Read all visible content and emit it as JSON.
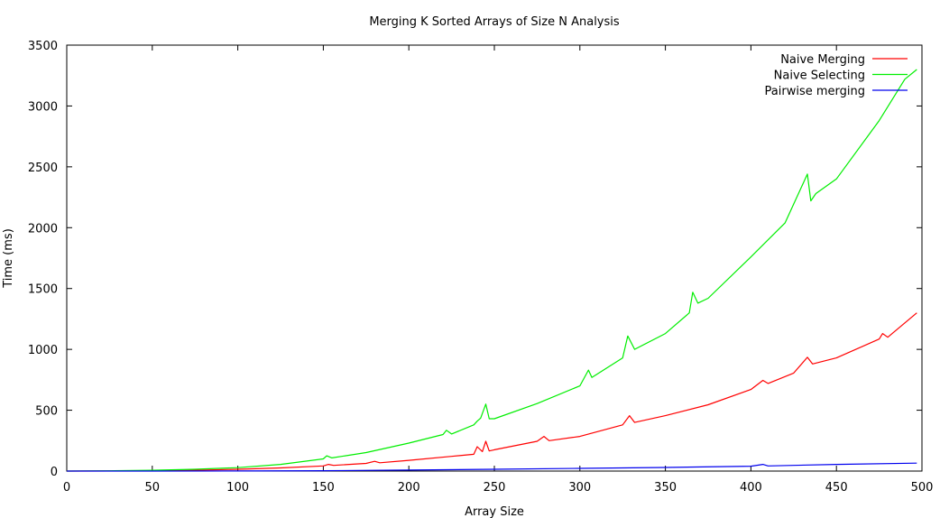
{
  "chart_data": {
    "type": "line",
    "title": "Merging K Sorted Arrays of Size N Analysis",
    "xlabel": "Array Size",
    "ylabel": "Time (ms)",
    "xlim": [
      0,
      500
    ],
    "ylim": [
      0,
      3500
    ],
    "xticks": [
      0,
      50,
      100,
      150,
      200,
      250,
      300,
      350,
      400,
      450,
      500
    ],
    "yticks": [
      0,
      500,
      1000,
      1500,
      2000,
      2500,
      3000,
      3500
    ],
    "grid": false,
    "legend_position": "top-right",
    "series": [
      {
        "name": "Naive Merging",
        "color": "#ff0000",
        "x": [
          0,
          25,
          50,
          75,
          100,
          125,
          150,
          153,
          156,
          175,
          180,
          183,
          200,
          225,
          238,
          240,
          243,
          245,
          247,
          250,
          275,
          279,
          282,
          300,
          325,
          329,
          332,
          350,
          375,
          400,
          407,
          410,
          425,
          433,
          436,
          450,
          475,
          477,
          480,
          497
        ],
        "values": [
          0,
          1,
          3,
          7,
          15,
          26,
          42,
          55,
          47,
          63,
          80,
          68,
          88,
          121,
          138,
          200,
          160,
          245,
          165,
          175,
          245,
          285,
          250,
          285,
          380,
          455,
          400,
          455,
          545,
          670,
          745,
          720,
          805,
          935,
          880,
          930,
          1085,
          1130,
          1100,
          1300
        ]
      },
      {
        "name": "Naive Selecting",
        "color": "#00ee00",
        "x": [
          0,
          25,
          50,
          75,
          100,
          125,
          150,
          152,
          155,
          175,
          200,
          220,
          222,
          225,
          238,
          240,
          242,
          245,
          247,
          250,
          275,
          300,
          305,
          307,
          325,
          328,
          332,
          350,
          364,
          366,
          369,
          375,
          400,
          420,
          433,
          435,
          438,
          450,
          475,
          490,
          497
        ],
        "values": [
          0,
          2,
          7,
          15,
          28,
          55,
          100,
          125,
          108,
          152,
          230,
          300,
          335,
          305,
          380,
          410,
          435,
          550,
          430,
          430,
          555,
          700,
          830,
          770,
          930,
          1110,
          1000,
          1130,
          1300,
          1470,
          1380,
          1420,
          1760,
          2040,
          2440,
          2220,
          2280,
          2400,
          2880,
          3220,
          3300
        ]
      },
      {
        "name": "Pairwise merging",
        "color": "#0000ee",
        "x": [
          0,
          50,
          100,
          150,
          200,
          250,
          300,
          350,
          400,
          407,
          410,
          450,
          497
        ],
        "values": [
          0,
          0,
          1,
          3,
          8,
          15,
          22,
          30,
          40,
          55,
          42,
          55,
          65
        ]
      }
    ]
  }
}
